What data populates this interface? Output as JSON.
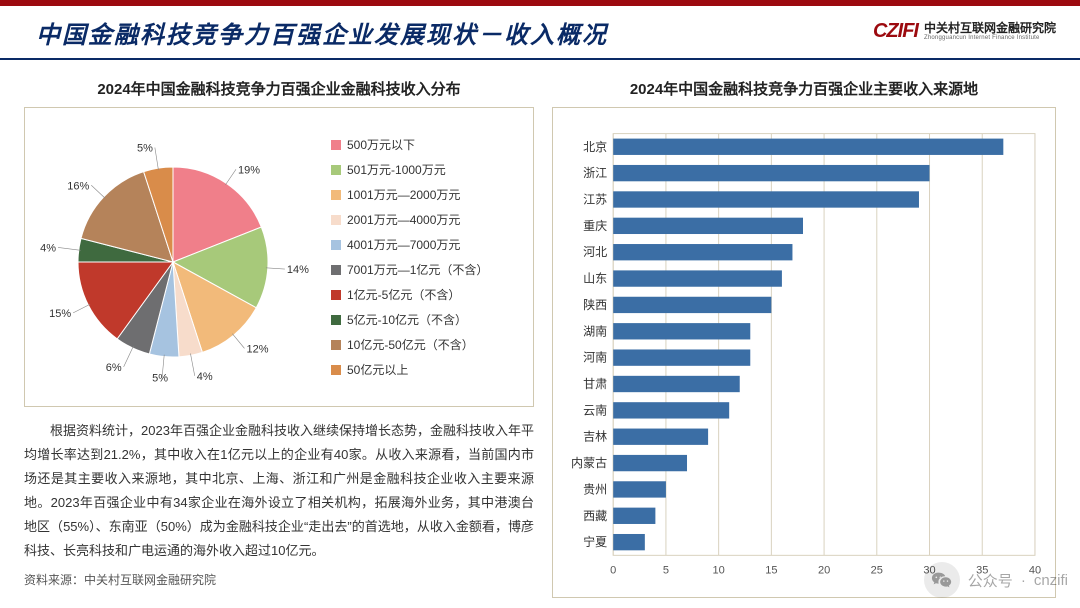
{
  "page_title": "中国金融科技竞争力百强企业发展现状－收入概况",
  "logo": {
    "mark": "CZIFI",
    "cn": "中关村互联网金融研究院",
    "en": "Zhongguancun Internet Finance Institute"
  },
  "pie": {
    "title": "2024年中国金融科技竞争力百强企业金融科技收入分布",
    "type": "pie",
    "background_color": "#ffffff",
    "border_color": "#d0c8b0",
    "label_fontsize": 11,
    "legend_fontsize": 12,
    "slices": [
      {
        "label": "500万元以下",
        "value": 19,
        "color": "#f07f8a",
        "text": "19%",
        "label_r": 1.18
      },
      {
        "label": "501万元-1000万元",
        "value": 14,
        "color": "#a7c97a",
        "text": "14%",
        "label_r": 1.18
      },
      {
        "label": "1001万元—2000万元",
        "value": 12,
        "color": "#f2ba7a",
        "text": "12%",
        "label_r": 1.18
      },
      {
        "label": "2001万元—4000万元",
        "value": 4,
        "color": "#f7dccb",
        "text": "4%",
        "label_r": 1.22
      },
      {
        "label": "4001万元—7000万元",
        "value": 5,
        "color": "#a6c3e0",
        "text": "5%",
        "label_r": 1.22
      },
      {
        "label": "7001万元—1亿元（不含）",
        "value": 6,
        "color": "#6e6e70",
        "text": "6%",
        "label_r": 1.22
      },
      {
        "label": "1亿元-5亿元（不含）",
        "value": 15,
        "color": "#c0392b",
        "text": "15%",
        "label_r": 1.18
      },
      {
        "label": "5亿元-10亿元（不含）",
        "value": 4,
        "color": "#3f6a3f",
        "text": "4%",
        "label_r": 1.22
      },
      {
        "label": "10亿元-50亿元（不含）",
        "value": 16,
        "color": "#b5835a",
        "text": "16%",
        "label_r": 1.18
      },
      {
        "label": "50亿元以上",
        "value": 5,
        "color": "#d98c4a",
        "text": "5%",
        "label_r": 1.22
      }
    ]
  },
  "bar": {
    "title": "2024年中国金融科技竞争力百强企业主要收入来源地",
    "type": "bar-horizontal",
    "xlim": [
      0,
      40
    ],
    "xtick_step": 5,
    "grid_color": "#d9d2bf",
    "bar_color": "#3b6ea5",
    "label_fontsize": 12,
    "categories": [
      "北京",
      "浙江",
      "江苏",
      "重庆",
      "河北",
      "山东",
      "陕西",
      "湖南",
      "河南",
      "甘肃",
      "云南",
      "吉林",
      "内蒙古",
      "贵州",
      "西藏",
      "宁夏"
    ],
    "values": [
      37,
      30,
      29,
      18,
      17,
      16,
      15,
      13,
      13,
      12,
      11,
      9,
      7,
      5,
      4,
      3
    ]
  },
  "body_text": "根据资料统计，2023年百强企业金融科技收入继续保持增长态势，金融科技收入年平均增长率达到21.2%，其中收入在1亿元以上的企业有40家。从收入来源看，当前国内市场还是其主要收入来源地，其中北京、上海、浙江和广州是金融科技企业收入主要来源地。2023年百强企业中有34家企业在海外设立了相关机构，拓展海外业务，其中港澳台地区（55%）、东南亚（50%）成为金融科技企业“走出去”的首选地，从收入金额看，博彦科技、长亮科技和广电运通的海外收入超过10亿元。",
  "source_text": "资料来源：中关村互联网金融研究院",
  "watermark": {
    "label1": "公众号",
    "label2": "cnzifi"
  }
}
